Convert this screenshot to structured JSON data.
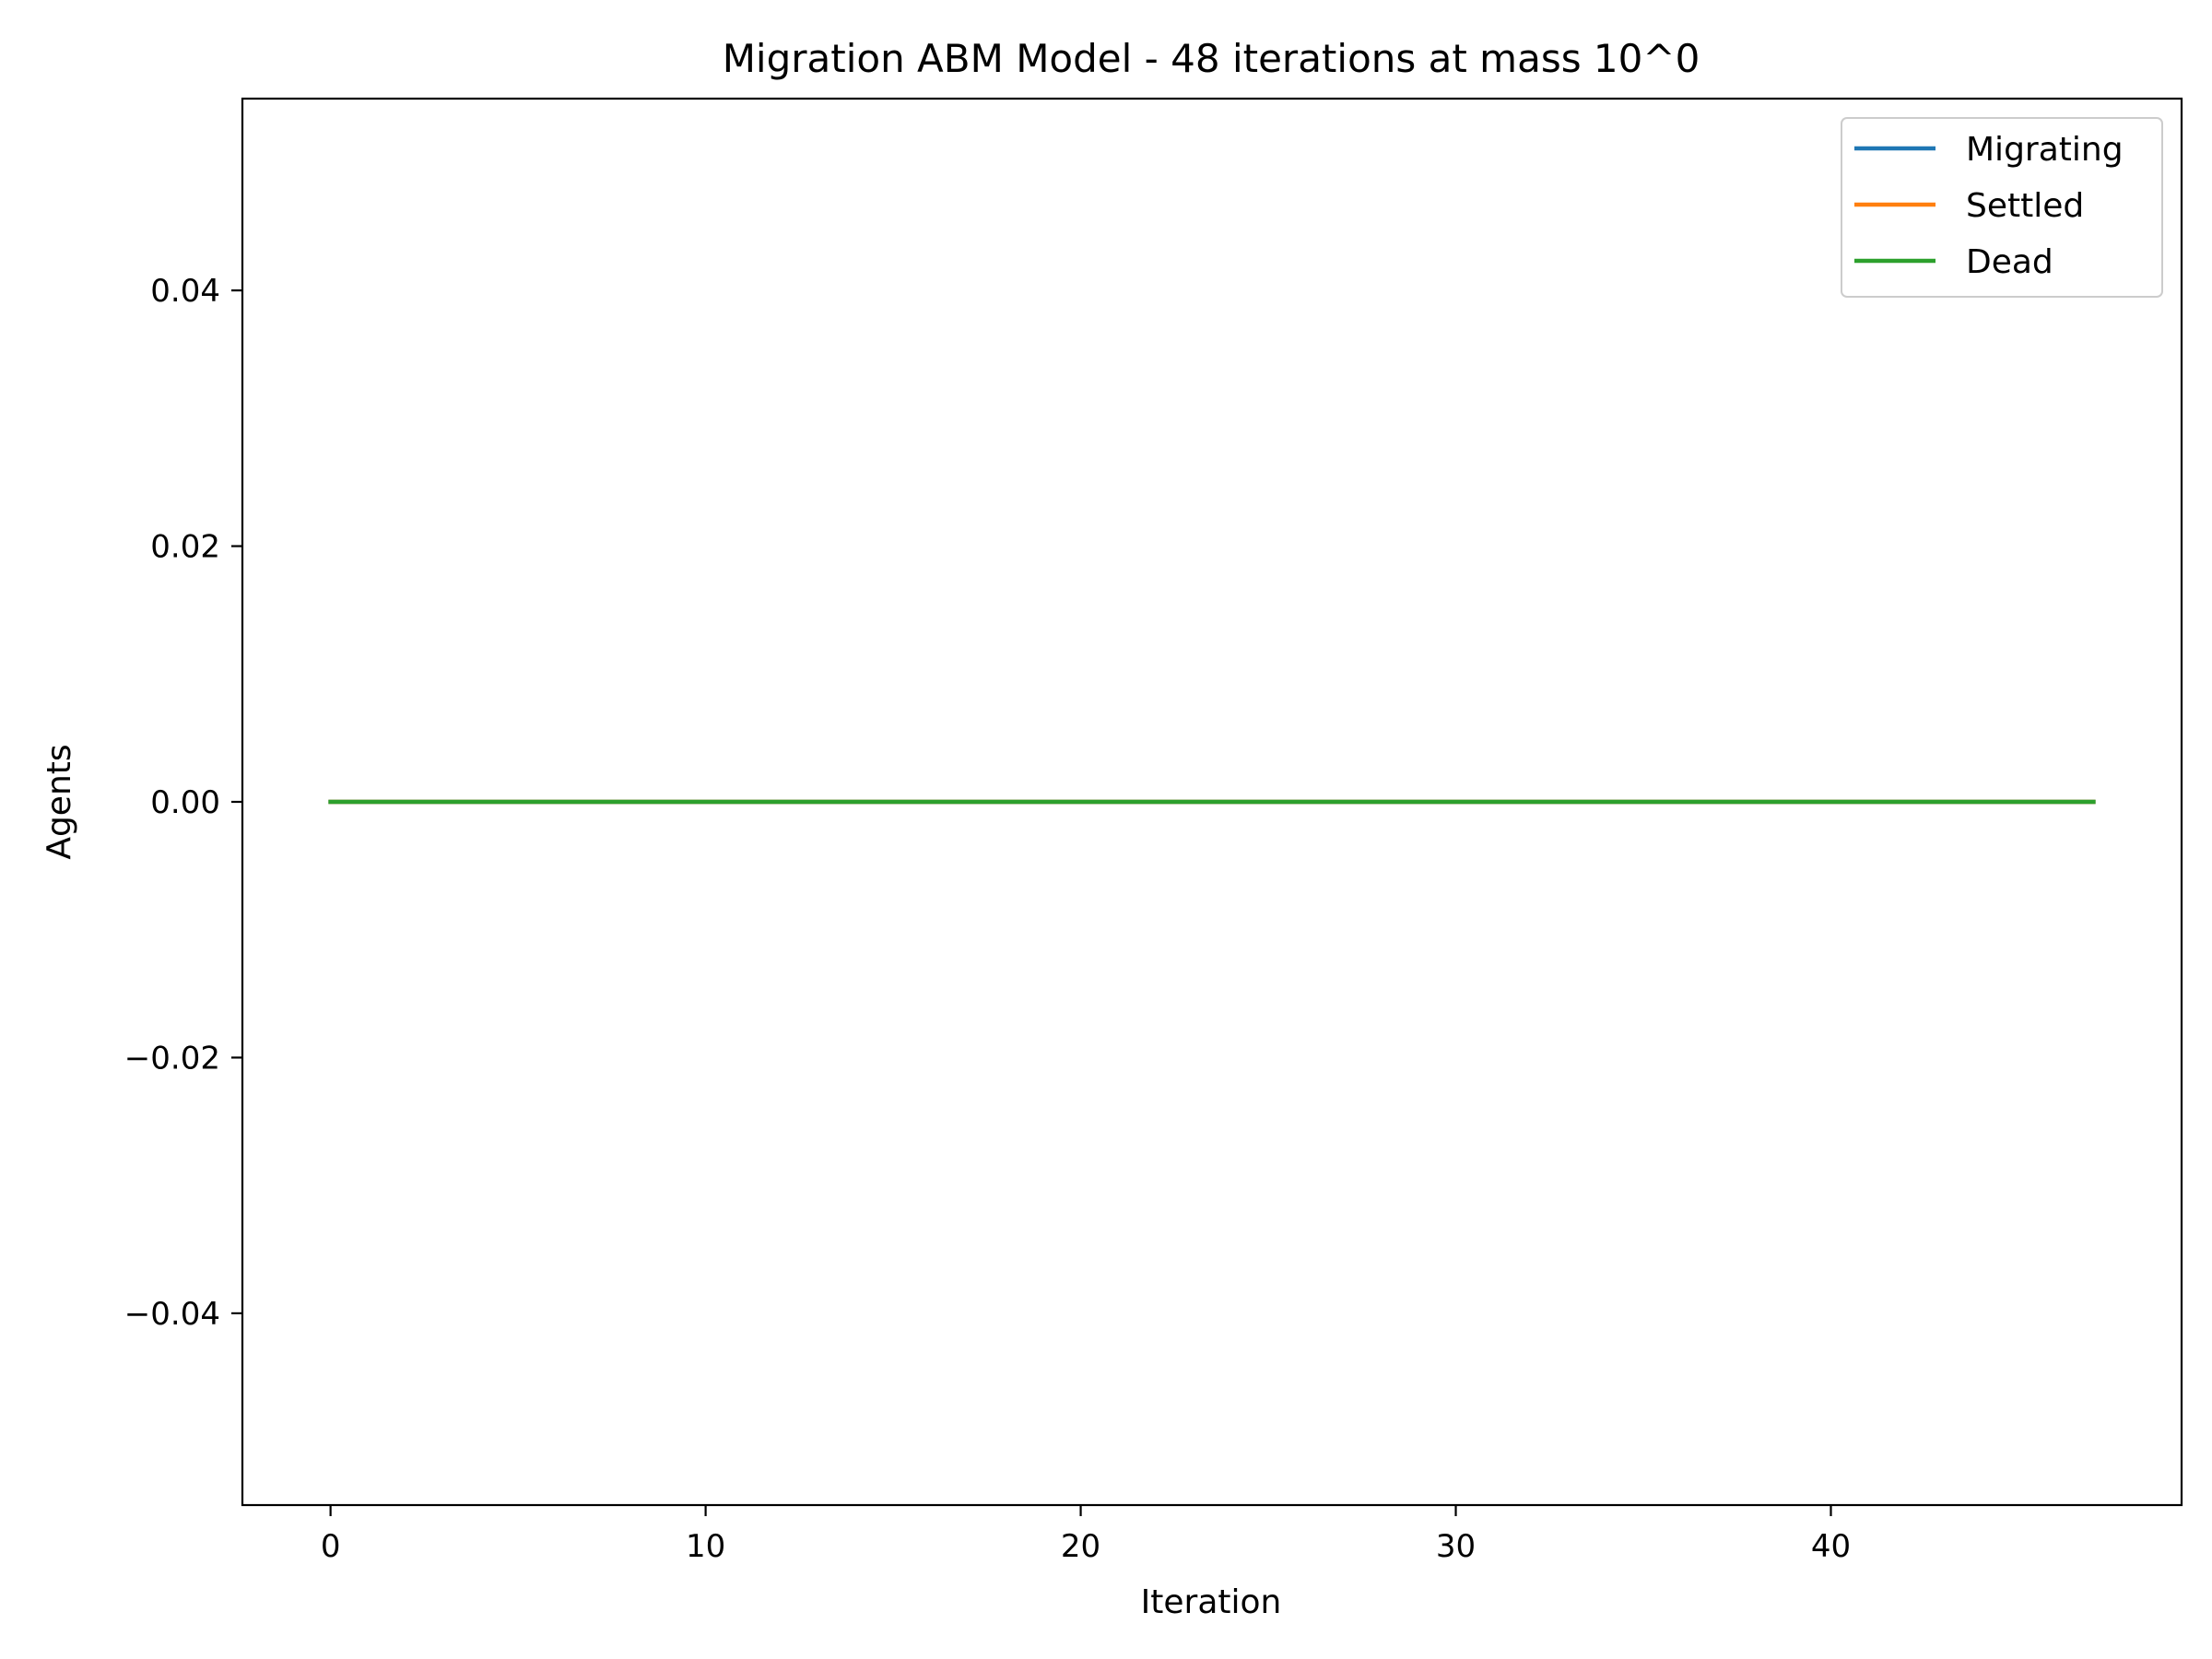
{
  "chart_data": {
    "type": "line",
    "title": "Migration ABM Model - 48 iterations at mass 10^0",
    "xlabel": "Iteration",
    "ylabel": "Agents",
    "xlim": [
      -2.35,
      49.35
    ],
    "ylim": [
      -0.055,
      0.055
    ],
    "xticks": [
      0,
      10,
      20,
      30,
      40
    ],
    "xtick_labels": [
      "0",
      "10",
      "20",
      "30",
      "40"
    ],
    "yticks": [
      0.04,
      0.02,
      0.0,
      -0.02,
      -0.04
    ],
    "ytick_labels": [
      "0.04",
      "0.02",
      "0.00",
      "−0.02",
      "−0.04"
    ],
    "grid": false,
    "legend_position": "top-right",
    "x": [
      0,
      1,
      2,
      3,
      4,
      5,
      6,
      7,
      8,
      9,
      10,
      11,
      12,
      13,
      14,
      15,
      16,
      17,
      18,
      19,
      20,
      21,
      22,
      23,
      24,
      25,
      26,
      27,
      28,
      29,
      30,
      31,
      32,
      33,
      34,
      35,
      36,
      37,
      38,
      39,
      40,
      41,
      42,
      43,
      44,
      45,
      46,
      47
    ],
    "series": [
      {
        "name": "Migrating",
        "color": "#1f77b4",
        "values": [
          0,
          0,
          0,
          0,
          0,
          0,
          0,
          0,
          0,
          0,
          0,
          0,
          0,
          0,
          0,
          0,
          0,
          0,
          0,
          0,
          0,
          0,
          0,
          0,
          0,
          0,
          0,
          0,
          0,
          0,
          0,
          0,
          0,
          0,
          0,
          0,
          0,
          0,
          0,
          0,
          0,
          0,
          0,
          0,
          0,
          0,
          0,
          0
        ]
      },
      {
        "name": "Settled",
        "color": "#ff7f0e",
        "values": [
          0,
          0,
          0,
          0,
          0,
          0,
          0,
          0,
          0,
          0,
          0,
          0,
          0,
          0,
          0,
          0,
          0,
          0,
          0,
          0,
          0,
          0,
          0,
          0,
          0,
          0,
          0,
          0,
          0,
          0,
          0,
          0,
          0,
          0,
          0,
          0,
          0,
          0,
          0,
          0,
          0,
          0,
          0,
          0,
          0,
          0,
          0,
          0
        ]
      },
      {
        "name": "Dead",
        "color": "#2ca02c",
        "values": [
          0,
          0,
          0,
          0,
          0,
          0,
          0,
          0,
          0,
          0,
          0,
          0,
          0,
          0,
          0,
          0,
          0,
          0,
          0,
          0,
          0,
          0,
          0,
          0,
          0,
          0,
          0,
          0,
          0,
          0,
          0,
          0,
          0,
          0,
          0,
          0,
          0,
          0,
          0,
          0,
          0,
          0,
          0,
          0,
          0,
          0,
          0,
          0
        ]
      }
    ]
  }
}
